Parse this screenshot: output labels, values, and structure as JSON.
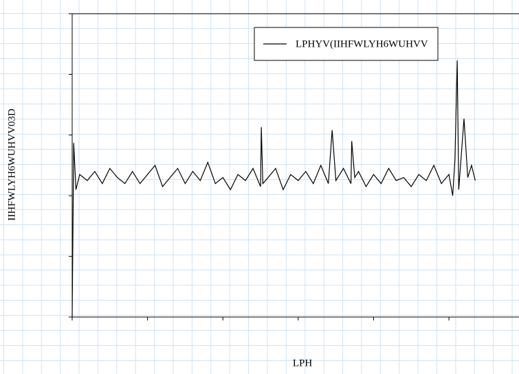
{
  "chart_data": {
    "type": "line",
    "xlabel": "LPH",
    "ylabel": "IIHFWLYH6WUHVV03D",
    "xlim": [
      0,
      5.93
    ],
    "xticks": [
      0,
      1,
      2,
      3,
      4,
      5
    ],
    "ylim": [
      0,
      5
    ],
    "yticks": [
      0,
      1,
      2,
      3,
      4,
      5
    ],
    "legend": "upper right",
    "series": [
      {
        "name": "LPHYV(IIHFWLYH6WUHVV",
        "color": "#000000",
        "x": [
          0,
          0.02,
          0.05,
          0.1,
          0.2,
          0.3,
          0.4,
          0.5,
          0.6,
          0.7,
          0.8,
          0.9,
          1.0,
          1.1,
          1.2,
          1.3,
          1.4,
          1.5,
          1.6,
          1.7,
          1.8,
          1.9,
          2.0,
          2.1,
          2.2,
          2.3,
          2.4,
          2.5,
          2.51,
          2.53,
          2.6,
          2.7,
          2.8,
          2.9,
          3.0,
          3.1,
          3.2,
          3.3,
          3.4,
          3.45,
          3.5,
          3.6,
          3.7,
          3.71,
          3.75,
          3.8,
          3.9,
          4.0,
          4.1,
          4.2,
          4.3,
          4.4,
          4.5,
          4.6,
          4.7,
          4.8,
          4.9,
          5.0,
          5.05,
          5.08,
          5.11,
          5.13,
          5.2,
          5.25,
          5.3,
          5.35
        ],
        "values": [
          0,
          2.87,
          2.1,
          2.35,
          2.25,
          2.4,
          2.2,
          2.45,
          2.3,
          2.2,
          2.4,
          2.2,
          2.35,
          2.5,
          2.15,
          2.3,
          2.45,
          2.2,
          2.4,
          2.25,
          2.55,
          2.2,
          2.3,
          2.1,
          2.35,
          2.25,
          2.45,
          2.15,
          3.13,
          2.2,
          2.3,
          2.45,
          2.1,
          2.35,
          2.25,
          2.4,
          2.2,
          2.5,
          2.2,
          3.08,
          2.25,
          2.45,
          2.2,
          2.9,
          2.3,
          2.4,
          2.15,
          2.35,
          2.2,
          2.45,
          2.25,
          2.3,
          2.15,
          2.35,
          2.25,
          2.5,
          2.2,
          2.35,
          2.0,
          2.6,
          4.23,
          2.1,
          3.27,
          2.3,
          2.5,
          2.25
        ]
      }
    ]
  }
}
